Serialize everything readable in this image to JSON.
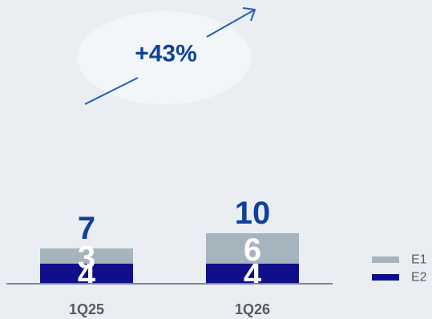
{
  "chart_data": {
    "type": "bar",
    "stacked": true,
    "categories": [
      "1Q25",
      "1Q26"
    ],
    "series": [
      {
        "name": "E2",
        "values": [
          4,
          4
        ],
        "color": "#0f0f8c"
      },
      {
        "name": "E1",
        "values": [
          3,
          6
        ],
        "color": "#a6b4be"
      }
    ],
    "totals": [
      7,
      10
    ],
    "annotation": {
      "text": "+43%"
    },
    "legend": {
      "position": "bottom-right"
    },
    "grid": false,
    "ylim": [
      0,
      10
    ]
  },
  "colors": {
    "total_label": "#10419a",
    "axis": "#7b8796",
    "arrow": "#1f5fb5"
  }
}
